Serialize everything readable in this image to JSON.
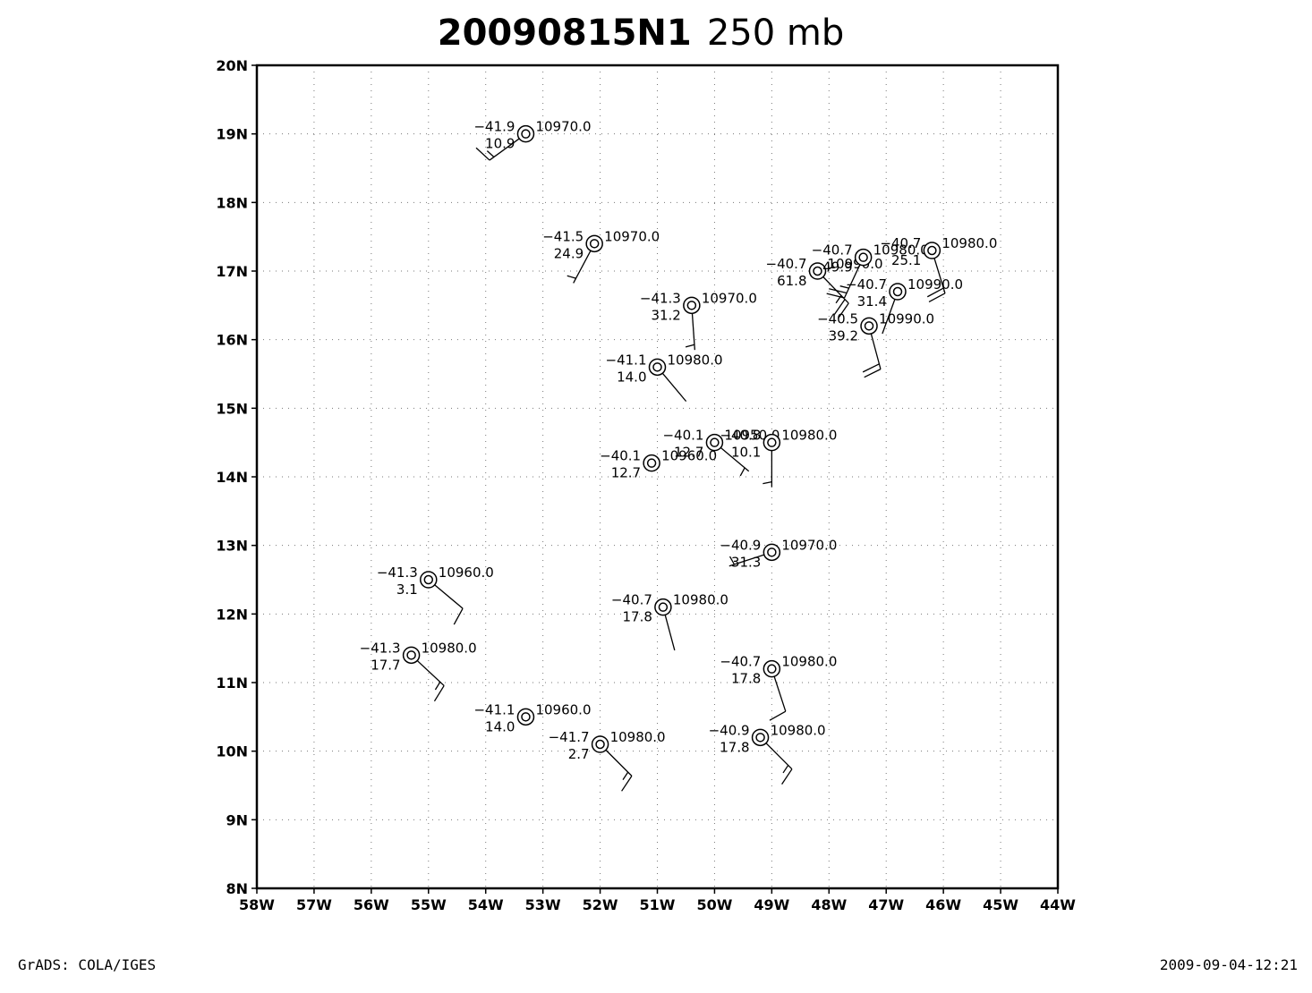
{
  "chart_data": {
    "type": "station-plot",
    "title": {
      "main": "20090815N1",
      "level": "250 mb"
    },
    "xlim": [
      -58,
      -44
    ],
    "ylim": [
      8,
      20
    ],
    "x_ticks": [
      -58,
      -57,
      -56,
      -55,
      -54,
      -53,
      -52,
      -51,
      -50,
      -49,
      -48,
      -47,
      -46,
      -45,
      -44
    ],
    "y_ticks": [
      8,
      9,
      10,
      11,
      12,
      13,
      14,
      15,
      16,
      17,
      18,
      19,
      20
    ],
    "x_tick_labels": [
      "58W",
      "57W",
      "56W",
      "55W",
      "54W",
      "53W",
      "52W",
      "51W",
      "50W",
      "49W",
      "48W",
      "47W",
      "46W",
      "45W",
      "44W"
    ],
    "y_tick_labels": [
      "8N",
      "9N",
      "10N",
      "11N",
      "12N",
      "13N",
      "14N",
      "15N",
      "16N",
      "17N",
      "18N",
      "19N",
      "20N"
    ],
    "grid": true,
    "stations": [
      {
        "lon": -53.3,
        "lat": 19.0,
        "temp": "−41.9",
        "hgt": "10970.0",
        "rh": "10.9",
        "wdir": 234,
        "wspd": 15
      },
      {
        "lon": -52.1,
        "lat": 17.4,
        "temp": "−41.5",
        "hgt": "10970.0",
        "rh": "24.9",
        "wdir": 208,
        "wspd": 5
      },
      {
        "lon": -50.4,
        "lat": 16.5,
        "temp": "−41.3",
        "hgt": "10970.0",
        "rh": "31.2",
        "wdir": 176,
        "wspd": 5
      },
      {
        "lon": -51.0,
        "lat": 15.6,
        "temp": "−41.1",
        "hgt": "10980.0",
        "rh": "14.0",
        "wdir": 140,
        "wspd": 0
      },
      {
        "lon": -51.1,
        "lat": 14.2,
        "temp": "−40.1",
        "hgt": "10960.0",
        "rh": "12.7",
        "wdir": 0,
        "wspd": 0
      },
      {
        "lon": -50.0,
        "lat": 14.5,
        "temp": "−40.1",
        "hgt": "10950.0",
        "rh": "12.7",
        "wdir": 130,
        "wspd": 5
      },
      {
        "lon": -49.0,
        "lat": 14.5,
        "temp": "−40.8",
        "hgt": "10980.0",
        "rh": "10.1",
        "wdir": 180,
        "wspd": 5
      },
      {
        "lon": -48.2,
        "lat": 17.0,
        "temp": "−40.7",
        "hgt": "10990.0",
        "rh": "61.8",
        "wdir": 136,
        "wspd": 25
      },
      {
        "lon": -47.4,
        "lat": 17.2,
        "temp": "−40.7",
        "hgt": "10980.0",
        "rh": "49.9",
        "wdir": 205,
        "wspd": 25
      },
      {
        "lon": -46.2,
        "lat": 17.3,
        "temp": "−40.7",
        "hgt": "10980.0",
        "rh": "25.1",
        "wdir": 163,
        "wspd": 20
      },
      {
        "lon": -46.8,
        "lat": 16.7,
        "temp": "−40.7",
        "hgt": "10990.0",
        "rh": "31.4",
        "wdir": 200,
        "wspd": 0
      },
      {
        "lon": -47.3,
        "lat": 16.2,
        "temp": "−40.5",
        "hgt": "10990.0",
        "rh": "39.2",
        "wdir": 165,
        "wspd": 20
      },
      {
        "lon": -49.0,
        "lat": 12.9,
        "temp": "−40.9",
        "hgt": "10970.0",
        "rh": "31.3",
        "wdir": 252,
        "wspd": 5
      },
      {
        "lon": -55.0,
        "lat": 12.5,
        "temp": "−41.3",
        "hgt": "10960.0",
        "rh": "3.1",
        "wdir": 130,
        "wspd": 10
      },
      {
        "lon": -50.9,
        "lat": 12.1,
        "temp": "−40.7",
        "hgt": "10980.0",
        "rh": "17.8",
        "wdir": 165,
        "wspd": 0
      },
      {
        "lon": -55.3,
        "lat": 11.4,
        "temp": "−41.3",
        "hgt": "10980.0",
        "rh": "17.7",
        "wdir": 133,
        "wspd": 15
      },
      {
        "lon": -49.0,
        "lat": 11.2,
        "temp": "−40.7",
        "hgt": "10980.0",
        "rh": "17.8",
        "wdir": 162,
        "wspd": 10
      },
      {
        "lon": -53.3,
        "lat": 10.5,
        "temp": "−41.1",
        "hgt": "10960.0",
        "rh": "14.0",
        "wdir": 0,
        "wspd": 0
      },
      {
        "lon": -52.0,
        "lat": 10.1,
        "temp": "−41.7",
        "hgt": "10980.0",
        "rh": "2.7",
        "wdir": 135,
        "wspd": 15
      },
      {
        "lon": -49.2,
        "lat": 10.2,
        "temp": "−40.9",
        "hgt": "10980.0",
        "rh": "17.8",
        "wdir": 135,
        "wspd": 15
      }
    ]
  },
  "footer": {
    "left": "GrADS: COLA/IGES",
    "right": "2009-09-04-12:21"
  }
}
